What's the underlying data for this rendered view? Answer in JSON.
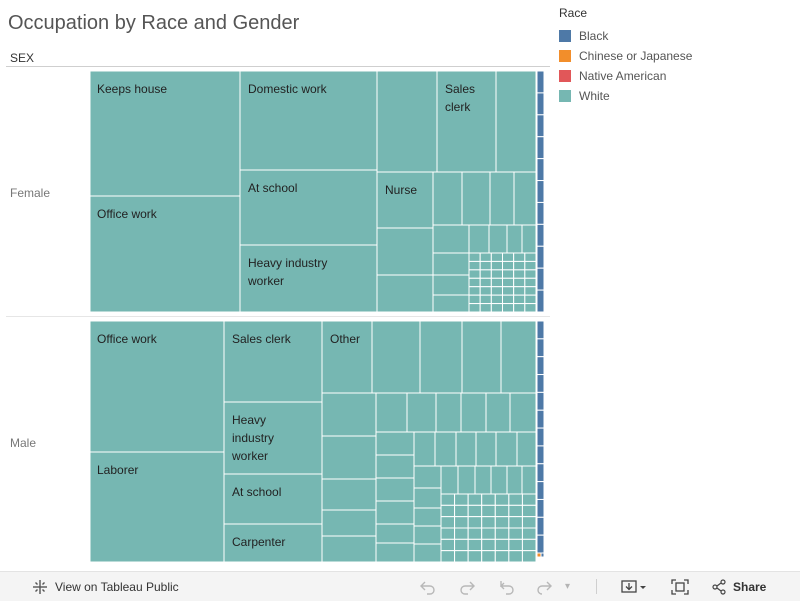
{
  "title": "Occupation by Race and Gender",
  "sex_header": "SEX",
  "colors": {
    "black": "#4E79A7",
    "chinese": "#F28E2B",
    "native": "#E15759",
    "white": "#76B7B2",
    "cell_border": "#ffffff"
  },
  "legend": {
    "title": "Race",
    "items": [
      {
        "label": "Black",
        "color": "#4E79A7"
      },
      {
        "label": "Chinese or Japanese",
        "color": "#F28E2B"
      },
      {
        "label": "Native American",
        "color": "#E15759"
      },
      {
        "label": "White",
        "color": "#76B7B2"
      }
    ]
  },
  "chart_data": {
    "type": "treemap",
    "title": "Occupation by Race and Gender",
    "row_field": "SEX",
    "color_field": "Race",
    "panels": [
      {
        "sex": "Female",
        "labeled_cells": [
          {
            "label": "Keeps house",
            "race": "White"
          },
          {
            "label": "Office work",
            "race": "White"
          },
          {
            "label": "Domestic work",
            "race": "White"
          },
          {
            "label": "At school",
            "race": "White"
          },
          {
            "label": "Heavy industry worker",
            "race": "White"
          },
          {
            "label": "Sales clerk",
            "race": "White"
          },
          {
            "label": "Nurse",
            "race": "White"
          }
        ]
      },
      {
        "sex": "Male",
        "labeled_cells": [
          {
            "label": "Office work",
            "race": "White"
          },
          {
            "label": "Laborer",
            "race": "White"
          },
          {
            "label": "Sales clerk",
            "race": "White"
          },
          {
            "label": "Heavy industry worker",
            "race": "White"
          },
          {
            "label": "At school",
            "race": "White"
          },
          {
            "label": "Carpenter",
            "race": "White"
          },
          {
            "label": "Other",
            "race": "White"
          }
        ]
      }
    ]
  },
  "toolbar": {
    "view_on_public": "View on Tableau Public",
    "share": "Share"
  }
}
